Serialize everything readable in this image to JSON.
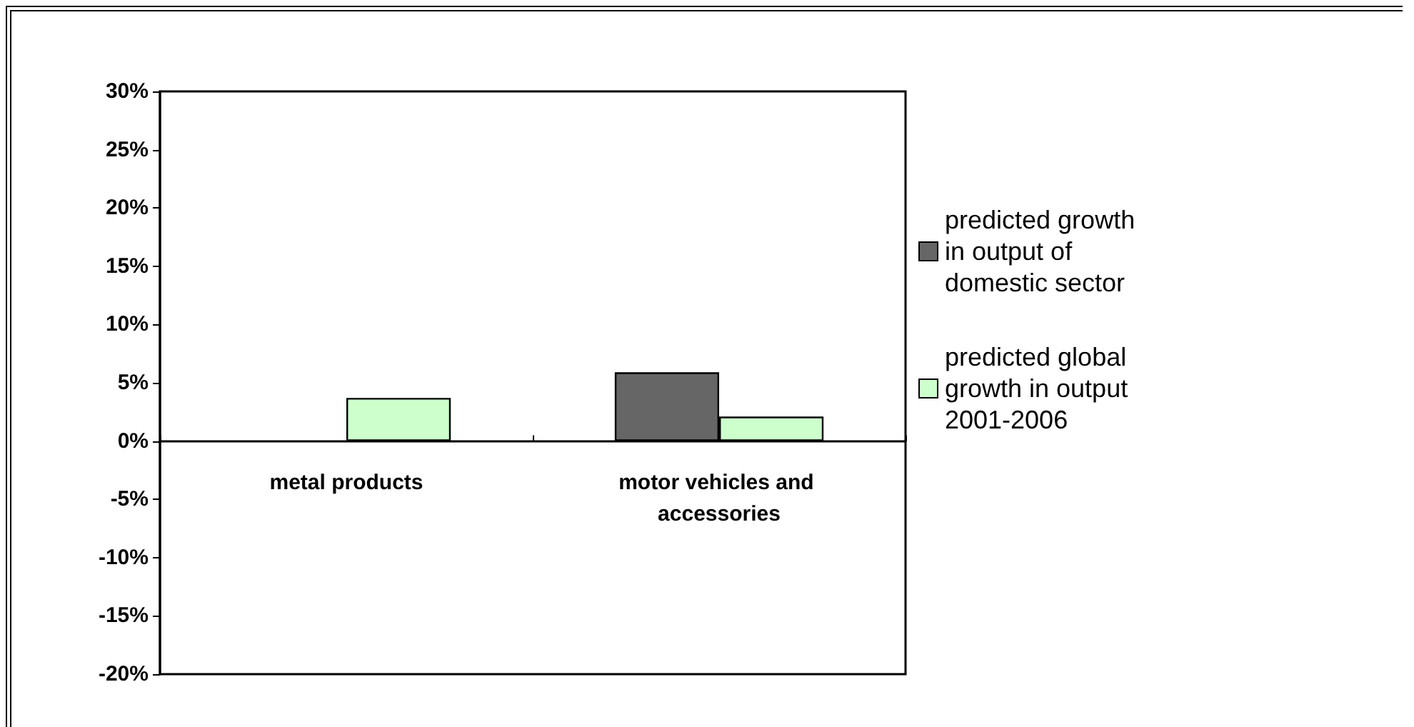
{
  "chart_data": {
    "type": "bar",
    "categories": [
      "metal products",
      "motor vehicles and accessories"
    ],
    "series": [
      {
        "name": "predicted growth in output of domestic sector",
        "color": "#666666",
        "values": [
          null,
          5.9
        ]
      },
      {
        "name": "predicted global growth in output 2001-2006",
        "color": "#ccffcc",
        "values": [
          3.7,
          2.1
        ]
      }
    ],
    "ylim": [
      -20,
      30
    ],
    "yticks": [
      {
        "value": -20,
        "label": "-20%"
      },
      {
        "value": -15,
        "label": "-15%"
      },
      {
        "value": -10,
        "label": "-10%"
      },
      {
        "value": -5,
        "label": "-5%"
      },
      {
        "value": 0,
        "label": "0%"
      },
      {
        "value": 5,
        "label": "5%"
      },
      {
        "value": 10,
        "label": "10%"
      },
      {
        "value": 15,
        "label": "15%"
      },
      {
        "value": 20,
        "label": "20%"
      },
      {
        "value": 25,
        "label": "25%"
      },
      {
        "value": 30,
        "label": "30%"
      }
    ],
    "grid": false,
    "legend": "right"
  }
}
